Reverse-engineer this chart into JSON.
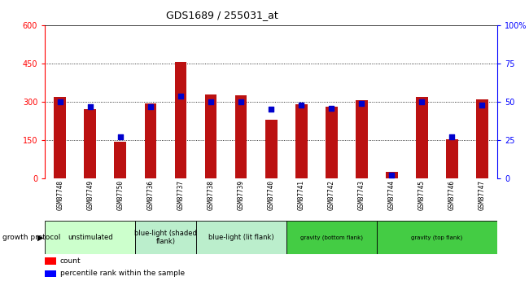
{
  "title": "GDS1689 / 255031_at",
  "samples": [
    "GSM87748",
    "GSM87749",
    "GSM87750",
    "GSM87736",
    "GSM87737",
    "GSM87738",
    "GSM87739",
    "GSM87740",
    "GSM87741",
    "GSM87742",
    "GSM87743",
    "GSM87744",
    "GSM87745",
    "GSM87746",
    "GSM87747"
  ],
  "count_values": [
    320,
    270,
    145,
    295,
    455,
    330,
    325,
    230,
    290,
    280,
    305,
    25,
    320,
    155,
    310
  ],
  "percentile_values": [
    50,
    47,
    27,
    47,
    54,
    50,
    50,
    45,
    48,
    46,
    49,
    2,
    50,
    27,
    48
  ],
  "group_defs": [
    {
      "start": 0,
      "end": 2,
      "label": "unstimulated",
      "color": "#ccffcc"
    },
    {
      "start": 3,
      "end": 4,
      "label": "blue-light (shaded\nflank)",
      "color": "#bbeecc"
    },
    {
      "start": 5,
      "end": 7,
      "label": "blue-light (lit flank)",
      "color": "#bbeecc"
    },
    {
      "start": 8,
      "end": 10,
      "label": "gravity (bottom flank)",
      "color": "#44cc44"
    },
    {
      "start": 11,
      "end": 14,
      "label": "gravity (top flank)",
      "color": "#44cc44"
    }
  ],
  "ylim_left": [
    0,
    600
  ],
  "ylim_right": [
    0,
    100
  ],
  "yticks_left": [
    0,
    150,
    300,
    450,
    600
  ],
  "yticks_right": [
    0,
    25,
    50,
    75,
    100
  ],
  "bar_color": "#bb1111",
  "dot_color": "#0000cc",
  "label_bg_color": "#cccccc",
  "bar_width": 0.4
}
